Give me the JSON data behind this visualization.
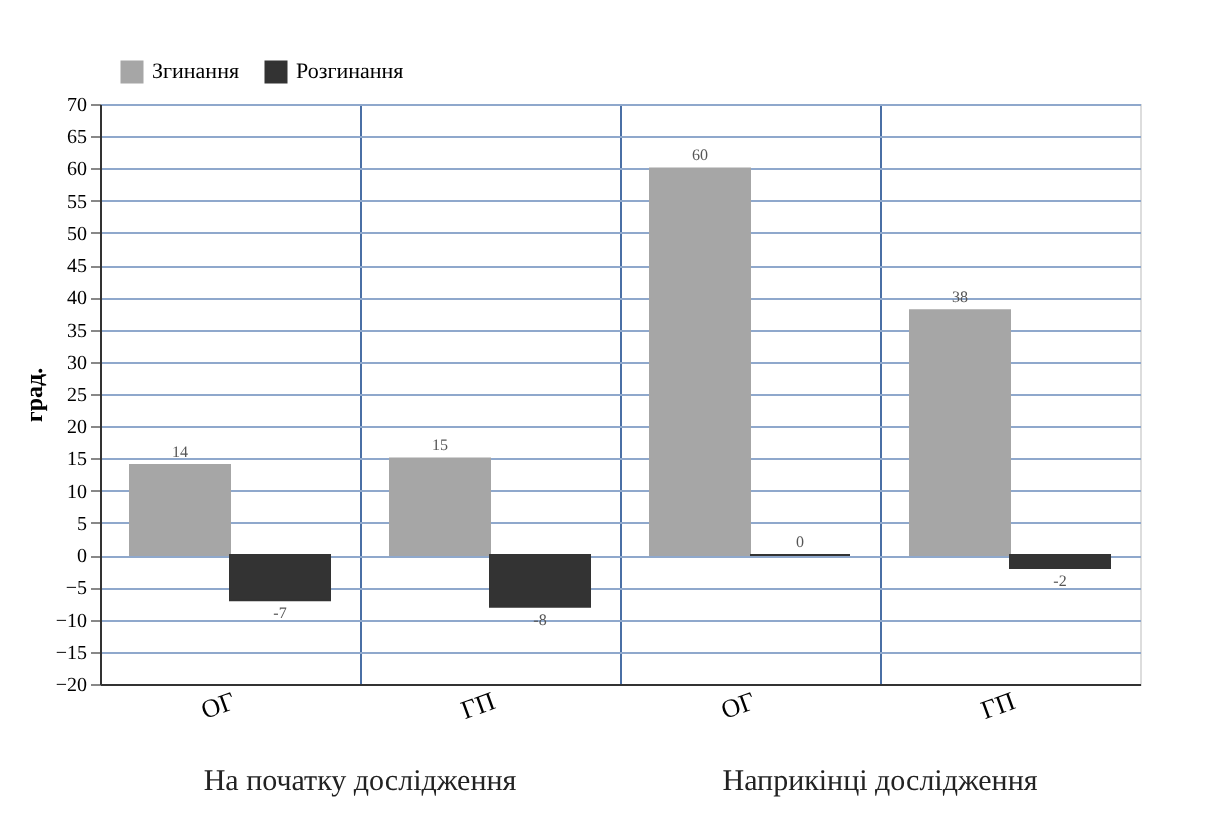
{
  "chart_data": {
    "type": "bar",
    "ylabel": "град.",
    "categories": [
      "ОГ",
      "ГП",
      "ОГ",
      "ГП"
    ],
    "series": [
      {
        "name": "Згинання",
        "color": "#a6a6a6",
        "values": [
          14,
          15,
          60,
          38
        ]
      },
      {
        "name": "Розгинання",
        "color": "#333333",
        "values": [
          -7,
          -8,
          0,
          -2
        ]
      }
    ],
    "ylim": [
      -20,
      70
    ],
    "yticks": [
      -20,
      -15,
      -10,
      -5,
      0,
      5,
      10,
      15,
      20,
      25,
      30,
      35,
      40,
      45,
      50,
      55,
      60,
      65,
      70
    ],
    "grid": true,
    "legend": "top left",
    "data_labels": true,
    "annotations": [
      "На початку дослідження",
      "Наприкінці дослідження"
    ]
  }
}
